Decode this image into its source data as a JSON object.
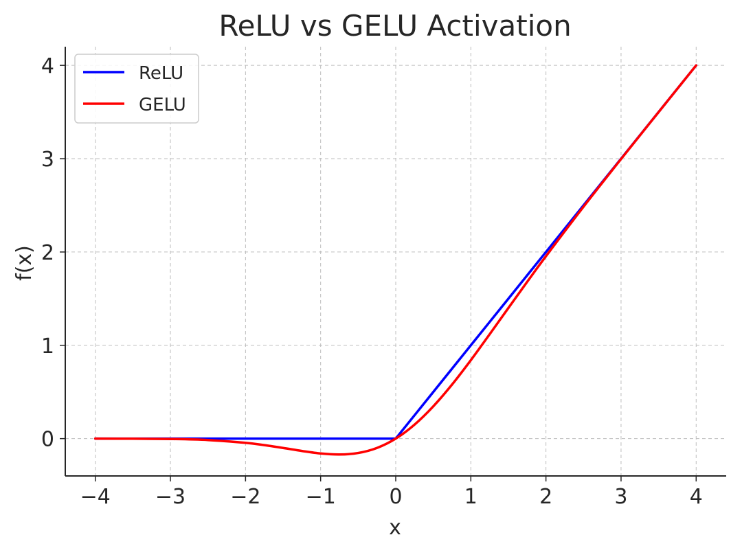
{
  "chart_data": {
    "type": "line",
    "title": "ReLU vs GELU Activation",
    "xlabel": "x",
    "ylabel": "f(x)",
    "xlim": [
      -4.4,
      4.4
    ],
    "ylim": [
      -0.4,
      4.2
    ],
    "xticks": [
      -4,
      -3,
      -2,
      -1,
      0,
      1,
      2,
      3,
      4
    ],
    "xtick_labels": [
      "−4",
      "−3",
      "−2",
      "−1",
      "0",
      "1",
      "2",
      "3",
      "4"
    ],
    "yticks": [
      0,
      1,
      2,
      3,
      4
    ],
    "ytick_labels": [
      "0",
      "1",
      "2",
      "3",
      "4"
    ],
    "grid": true,
    "legend_position": "top-left",
    "x": [
      -4.0,
      -3.5,
      -3.0,
      -2.5,
      -2.0,
      -1.75,
      -1.5,
      -1.25,
      -1.0,
      -0.75,
      -0.5,
      -0.25,
      0.0,
      0.25,
      0.5,
      0.75,
      1.0,
      1.25,
      1.5,
      1.75,
      2.0,
      2.5,
      3.0,
      3.5,
      4.0
    ],
    "series": [
      {
        "name": "ReLU",
        "color": "#0000ff",
        "values": [
          0,
          0,
          0,
          0,
          0,
          0,
          0,
          0,
          0,
          0,
          0,
          0,
          0,
          0.25,
          0.5,
          0.75,
          1.0,
          1.25,
          1.5,
          1.75,
          2.0,
          2.5,
          3.0,
          3.5,
          4.0
        ]
      },
      {
        "name": "GELU",
        "color": "#ff0000",
        "values": [
          0.0,
          -0.001,
          -0.004,
          -0.015,
          -0.045,
          -0.07,
          -0.1,
          -0.132,
          -0.159,
          -0.17,
          -0.154,
          -0.1,
          0.0,
          0.15,
          0.346,
          0.58,
          0.841,
          1.118,
          1.4,
          1.68,
          1.955,
          2.485,
          2.996,
          3.499,
          4.0
        ]
      }
    ]
  }
}
